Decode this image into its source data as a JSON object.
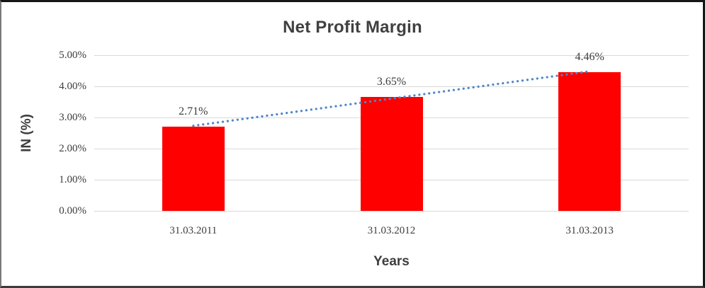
{
  "chart_data": {
    "type": "bar",
    "title": "Net Profit Margin",
    "categories": [
      "31.03.2011",
      "31.03.2012",
      "31.03.2013"
    ],
    "values": [
      2.71,
      3.65,
      4.46
    ],
    "data_labels": [
      "2.71%",
      "3.65%",
      "4.46%"
    ],
    "xlabel": "Years",
    "ylabel": "IN (%)",
    "ylim": [
      0,
      5
    ],
    "yticks": [
      {
        "value": 5,
        "label": "5.00%"
      },
      {
        "value": 4,
        "label": "4.00%"
      },
      {
        "value": 3,
        "label": "3.00%"
      },
      {
        "value": 2,
        "label": "2.00%"
      },
      {
        "value": 1,
        "label": "1.00%"
      },
      {
        "value": 0,
        "label": "0.00%"
      }
    ],
    "grid": true,
    "legend_position": "none",
    "bar_color": "#ff0000",
    "trendline": {
      "type": "linear",
      "style": "dotted",
      "color": "#4e86c8"
    },
    "colors": {
      "title_text": "#404040",
      "axis_text": "#3d3d3d",
      "gridline": "#d9d9d9",
      "background": "#ffffff",
      "frame_border": "#161616"
    }
  }
}
